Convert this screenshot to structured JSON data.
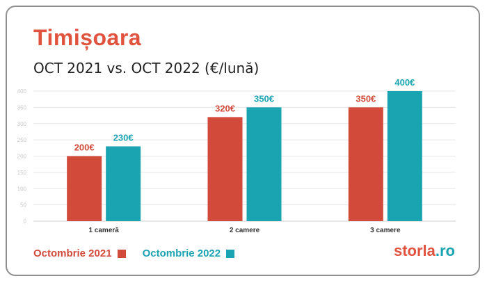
{
  "title": "Timișoara",
  "subtitle": "OCT 2021 vs. OCT 2022 (€/lună)",
  "colors": {
    "series1": "#d24a3a",
    "series2": "#1aa4b2",
    "grid": "#e6e6e6",
    "tick": "#c8c8c8"
  },
  "chart_data": {
    "type": "bar",
    "categories": [
      "1 cameră",
      "2 camere",
      "3 camere"
    ],
    "series": [
      {
        "name": "Octombrie 2021",
        "values": [
          200,
          320,
          350
        ],
        "labels": [
          "200€",
          "320€",
          "350€"
        ]
      },
      {
        "name": "Octombrie 2022",
        "values": [
          230,
          350,
          400
        ],
        "labels": [
          "230€",
          "350€",
          "400€"
        ]
      }
    ],
    "yticks": [
      "0",
      "50",
      "100",
      "150",
      "200",
      "250",
      "300",
      "350",
      "400"
    ],
    "ylim": [
      0,
      400
    ],
    "grid": true,
    "legend": "bottom-left"
  },
  "legend": {
    "item1": "Octombrie 2021",
    "item2": "Octombrie 2022"
  },
  "logo": {
    "part1": "storla",
    "part2": ".ro"
  }
}
